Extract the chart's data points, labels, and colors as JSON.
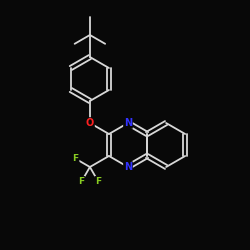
{
  "background_color": "#080808",
  "bond_color": "#d8d8d8",
  "atom_colors": {
    "O": "#ff2020",
    "N": "#3333ff",
    "F": "#88cc22",
    "C": "#d8d8d8"
  },
  "figsize": [
    2.5,
    2.5
  ],
  "dpi": 100
}
